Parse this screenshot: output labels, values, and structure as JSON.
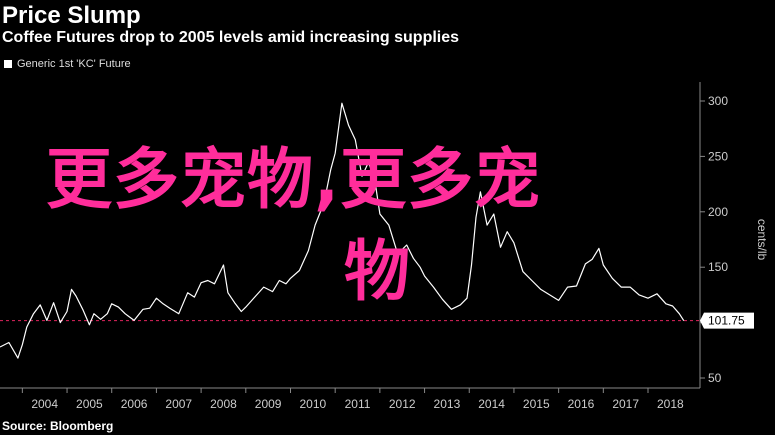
{
  "header": {
    "title": "Price Slump",
    "subtitle": "Coffee Futures drop to 2005 levels amid increasing supplies"
  },
  "footer": {
    "source": "Source: Bloomberg"
  },
  "overlay_text": {
    "line1": "更多宠物,更多宠",
    "line2": "物"
  },
  "colors": {
    "background": "#000000",
    "line": "#ffffff",
    "reference": "#e0245e",
    "overlay": "#ff2d9b"
  },
  "chart_data": {
    "type": "line",
    "title": "Price Slump",
    "subtitle": "Coffee Futures drop to 2005 levels amid increasing supplies",
    "ylabel": "cents/lb",
    "ylim": [
      50,
      300
    ],
    "yticks": [
      50,
      100,
      150,
      200,
      250,
      300
    ],
    "xlim": [
      2003.5,
      2018.85
    ],
    "xticks": [
      "2004",
      "2005",
      "2006",
      "2007",
      "2008",
      "2009",
      "2010",
      "2011",
      "2012",
      "2013",
      "2014",
      "2015",
      "2016",
      "2017",
      "2018"
    ],
    "legend": "top-left",
    "grid": false,
    "last_value_label": "101.75",
    "reference_line": 101.75,
    "series": [
      {
        "name": "Generic 1st 'KC' Future",
        "x": [
          2003.5,
          2003.7,
          2003.9,
          2004.0,
          2004.1,
          2004.25,
          2004.4,
          2004.55,
          2004.7,
          2004.85,
          2005.0,
          2005.1,
          2005.2,
          2005.35,
          2005.5,
          2005.6,
          2005.75,
          2005.9,
          2006.0,
          2006.15,
          2006.3,
          2006.5,
          2006.7,
          2006.85,
          2007.0,
          2007.15,
          2007.3,
          2007.5,
          2007.7,
          2007.85,
          2008.0,
          2008.15,
          2008.3,
          2008.5,
          2008.6,
          2008.75,
          2008.9,
          2009.0,
          2009.2,
          2009.4,
          2009.6,
          2009.75,
          2009.9,
          2010.0,
          2010.2,
          2010.4,
          2010.55,
          2010.75,
          2010.9,
          2011.0,
          2011.15,
          2011.3,
          2011.45,
          2011.6,
          2011.75,
          2011.9,
          2012.0,
          2012.2,
          2012.4,
          2012.6,
          2012.75,
          2012.9,
          2013.0,
          2013.2,
          2013.4,
          2013.6,
          2013.8,
          2013.95,
          2014.05,
          2014.15,
          2014.25,
          2014.4,
          2014.55,
          2014.7,
          2014.85,
          2015.0,
          2015.2,
          2015.4,
          2015.6,
          2015.8,
          2016.0,
          2016.2,
          2016.4,
          2016.6,
          2016.75,
          2016.9,
          2017.0,
          2017.2,
          2017.4,
          2017.6,
          2017.8,
          2018.0,
          2018.2,
          2018.4,
          2018.55,
          2018.7,
          2018.8
        ],
        "values": [
          78,
          82,
          68,
          80,
          96,
          108,
          116,
          102,
          118,
          100,
          110,
          130,
          124,
          112,
          98,
          108,
          103,
          108,
          117,
          114,
          108,
          102,
          112,
          113,
          122,
          117,
          113,
          108,
          127,
          123,
          136,
          138,
          135,
          152,
          127,
          118,
          110,
          114,
          123,
          132,
          128,
          138,
          135,
          140,
          147,
          165,
          188,
          208,
          238,
          253,
          298,
          278,
          265,
          232,
          245,
          225,
          198,
          188,
          162,
          170,
          158,
          150,
          142,
          132,
          121,
          112,
          116,
          122,
          152,
          195,
          218,
          188,
          198,
          168,
          182,
          172,
          146,
          138,
          130,
          125,
          120,
          132,
          133,
          153,
          157,
          167,
          152,
          140,
          132,
          132,
          125,
          122,
          126,
          117,
          115,
          108,
          101.75
        ]
      }
    ]
  }
}
